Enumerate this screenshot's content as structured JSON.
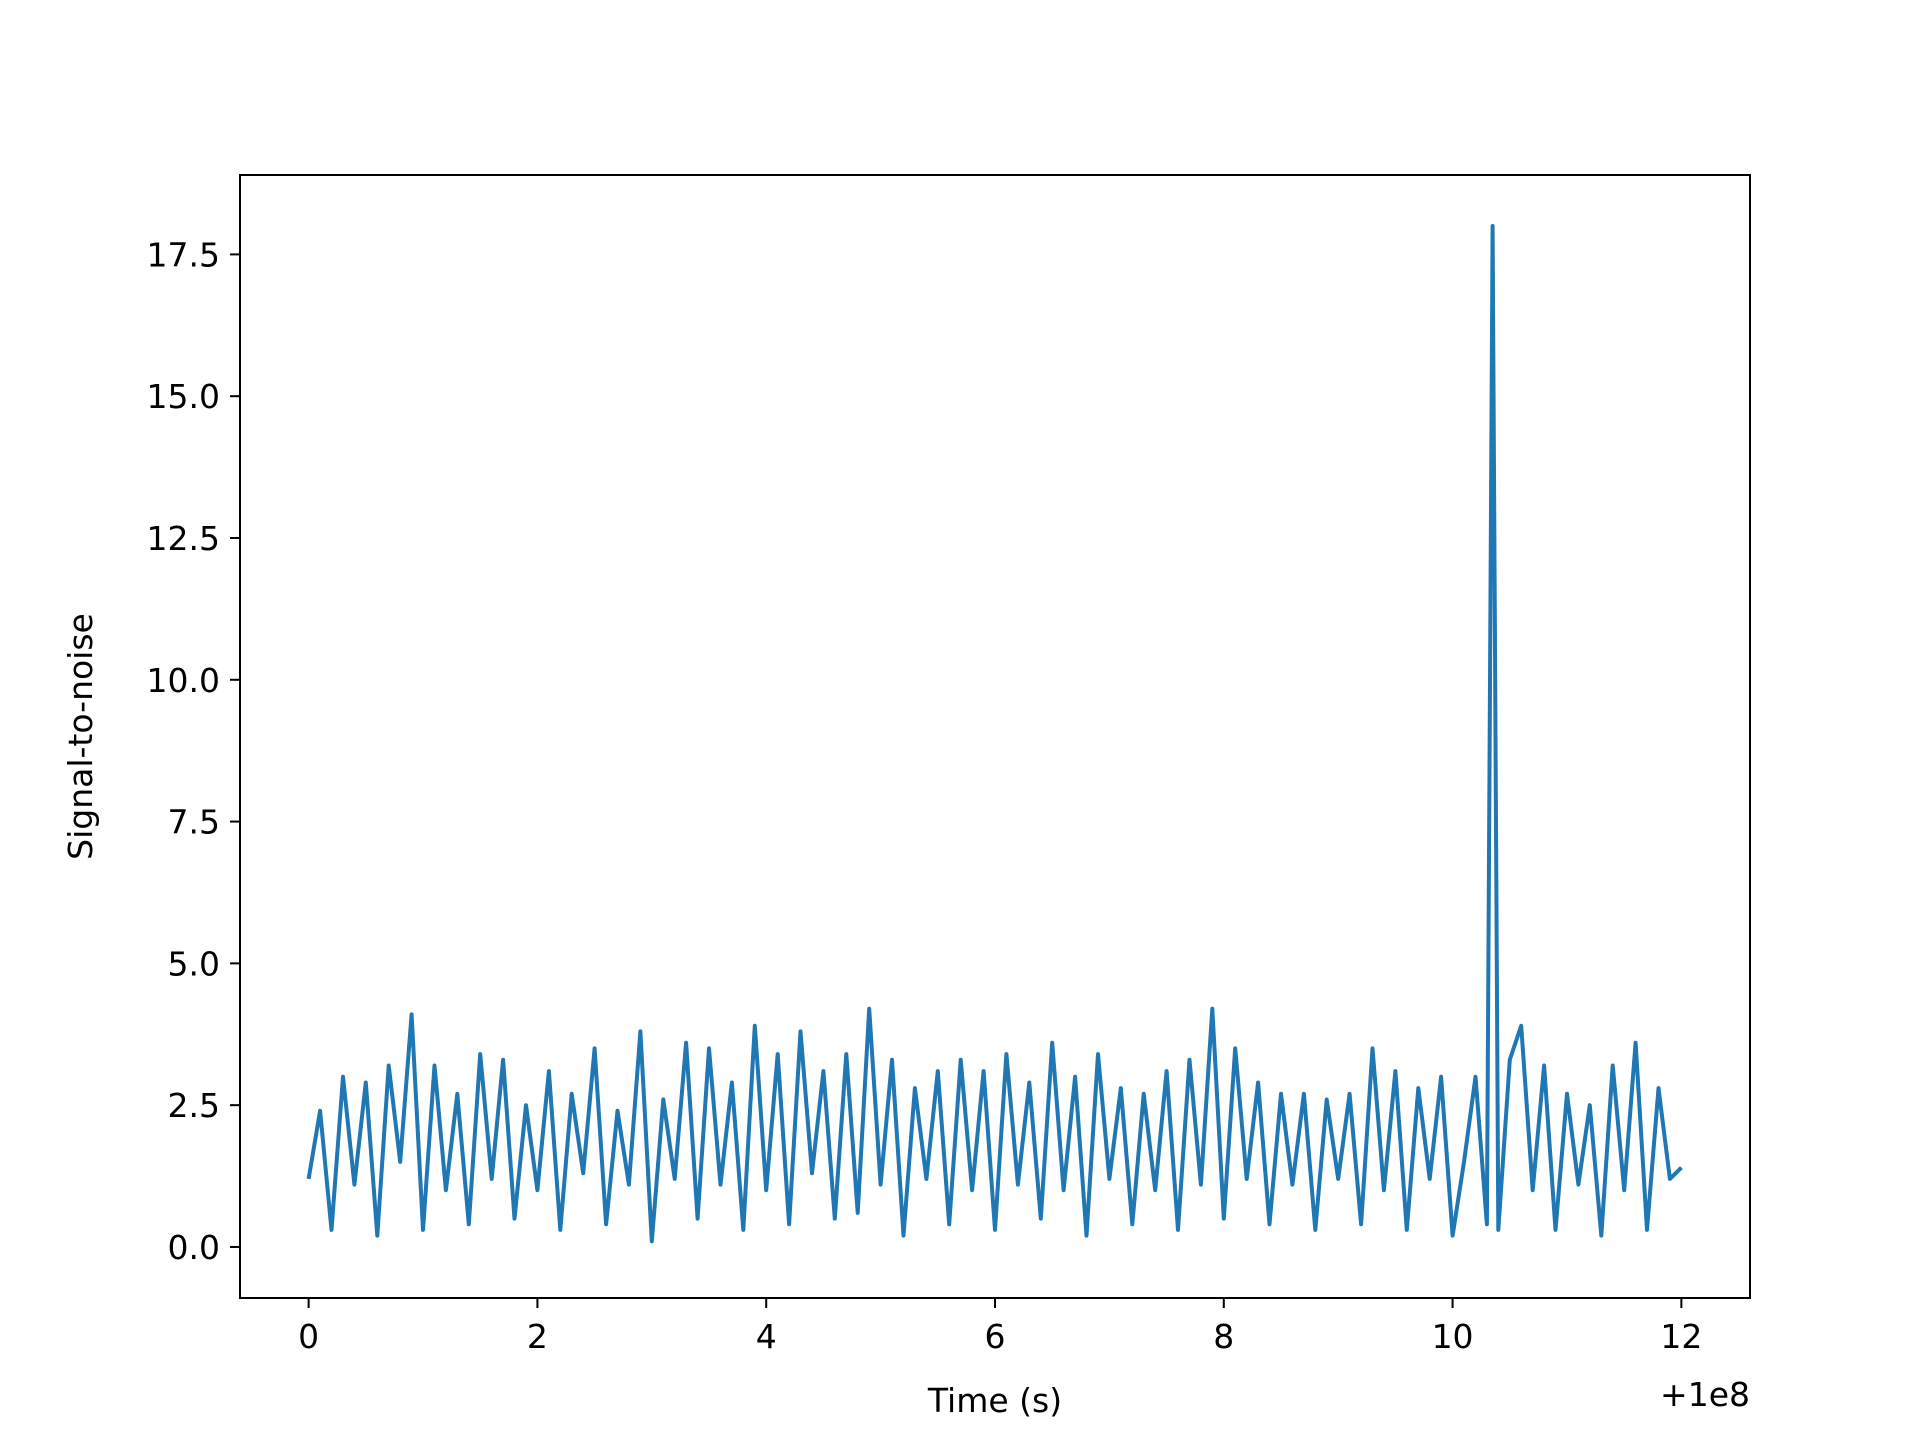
{
  "chart_data": {
    "type": "line",
    "title": "",
    "xlabel": "Time (s)",
    "ylabel": "Signal-to-noise",
    "x_offset_label": "+1e8",
    "xlim": [
      -0.6,
      12.6
    ],
    "ylim": [
      -0.9,
      18.9
    ],
    "xticks": [
      0,
      2,
      4,
      6,
      8,
      10,
      12
    ],
    "xtick_labels": [
      "0",
      "2",
      "4",
      "6",
      "8",
      "10",
      "12"
    ],
    "yticks": [
      0.0,
      2.5,
      5.0,
      7.5,
      10.0,
      12.5,
      15.0,
      17.5
    ],
    "ytick_labels": [
      "0.0",
      "2.5",
      "5.0",
      "7.5",
      "10.0",
      "12.5",
      "15.0",
      "17.5"
    ],
    "grid": false,
    "legend": "none",
    "colors": {
      "line": "#1f77b4"
    },
    "series": [
      {
        "name": "",
        "x": [
          0.0,
          0.1,
          0.2,
          0.3,
          0.4,
          0.5,
          0.6,
          0.7,
          0.8,
          0.9,
          1.0,
          1.1,
          1.2,
          1.3,
          1.4,
          1.5,
          1.6,
          1.7,
          1.8,
          1.9,
          2.0,
          2.1,
          2.2,
          2.3,
          2.4,
          2.5,
          2.6,
          2.7,
          2.8,
          2.9,
          3.0,
          3.1,
          3.2,
          3.3,
          3.4,
          3.5,
          3.6,
          3.7,
          3.8,
          3.9,
          4.0,
          4.1,
          4.2,
          4.3,
          4.4,
          4.5,
          4.6,
          4.7,
          4.8,
          4.9,
          5.0,
          5.1,
          5.2,
          5.3,
          5.4,
          5.5,
          5.6,
          5.7,
          5.8,
          5.9,
          6.0,
          6.1,
          6.2,
          6.3,
          6.4,
          6.5,
          6.6,
          6.7,
          6.8,
          6.9,
          7.0,
          7.1,
          7.2,
          7.3,
          7.4,
          7.5,
          7.6,
          7.7,
          7.8,
          7.9,
          8.0,
          8.1,
          8.2,
          8.3,
          8.4,
          8.5,
          8.6,
          8.7,
          8.8,
          8.9,
          9.0,
          9.1,
          9.2,
          9.3,
          9.4,
          9.5,
          9.6,
          9.7,
          9.8,
          9.9,
          10.0,
          10.1,
          10.2,
          10.3,
          10.35,
          10.4,
          10.5,
          10.6,
          10.7,
          10.8,
          10.9,
          11.0,
          11.1,
          11.2,
          11.3,
          11.4,
          11.5,
          11.6,
          11.7,
          11.8,
          11.9,
          12.0
        ],
        "y": [
          1.2,
          2.4,
          0.3,
          3.0,
          1.1,
          2.9,
          0.2,
          3.2,
          1.5,
          4.1,
          0.3,
          3.2,
          1.0,
          2.7,
          0.4,
          3.4,
          1.2,
          3.3,
          0.5,
          2.5,
          1.0,
          3.1,
          0.3,
          2.7,
          1.3,
          3.5,
          0.4,
          2.4,
          1.1,
          3.8,
          0.1,
          2.6,
          1.2,
          3.6,
          0.5,
          3.5,
          1.1,
          2.9,
          0.3,
          3.9,
          1.0,
          3.4,
          0.4,
          3.8,
          1.3,
          3.1,
          0.5,
          3.4,
          0.6,
          4.2,
          1.1,
          3.3,
          0.2,
          2.8,
          1.2,
          3.1,
          0.4,
          3.3,
          1.0,
          3.1,
          0.3,
          3.4,
          1.1,
          2.9,
          0.5,
          3.6,
          1.0,
          3.0,
          0.2,
          3.4,
          1.2,
          2.8,
          0.4,
          2.7,
          1.0,
          3.1,
          0.3,
          3.3,
          1.1,
          4.2,
          0.5,
          3.5,
          1.2,
          2.9,
          0.4,
          2.7,
          1.1,
          2.7,
          0.3,
          2.6,
          1.2,
          2.7,
          0.4,
          3.5,
          1.0,
          3.1,
          0.3,
          2.8,
          1.2,
          3.0,
          0.2,
          1.5,
          3.0,
          0.4,
          18.0,
          0.3,
          3.3,
          3.9,
          1.0,
          3.2,
          0.3,
          2.7,
          1.1,
          2.5,
          0.2,
          3.2,
          1.0,
          3.6,
          0.3,
          2.8,
          1.2,
          1.4
        ]
      }
    ]
  }
}
